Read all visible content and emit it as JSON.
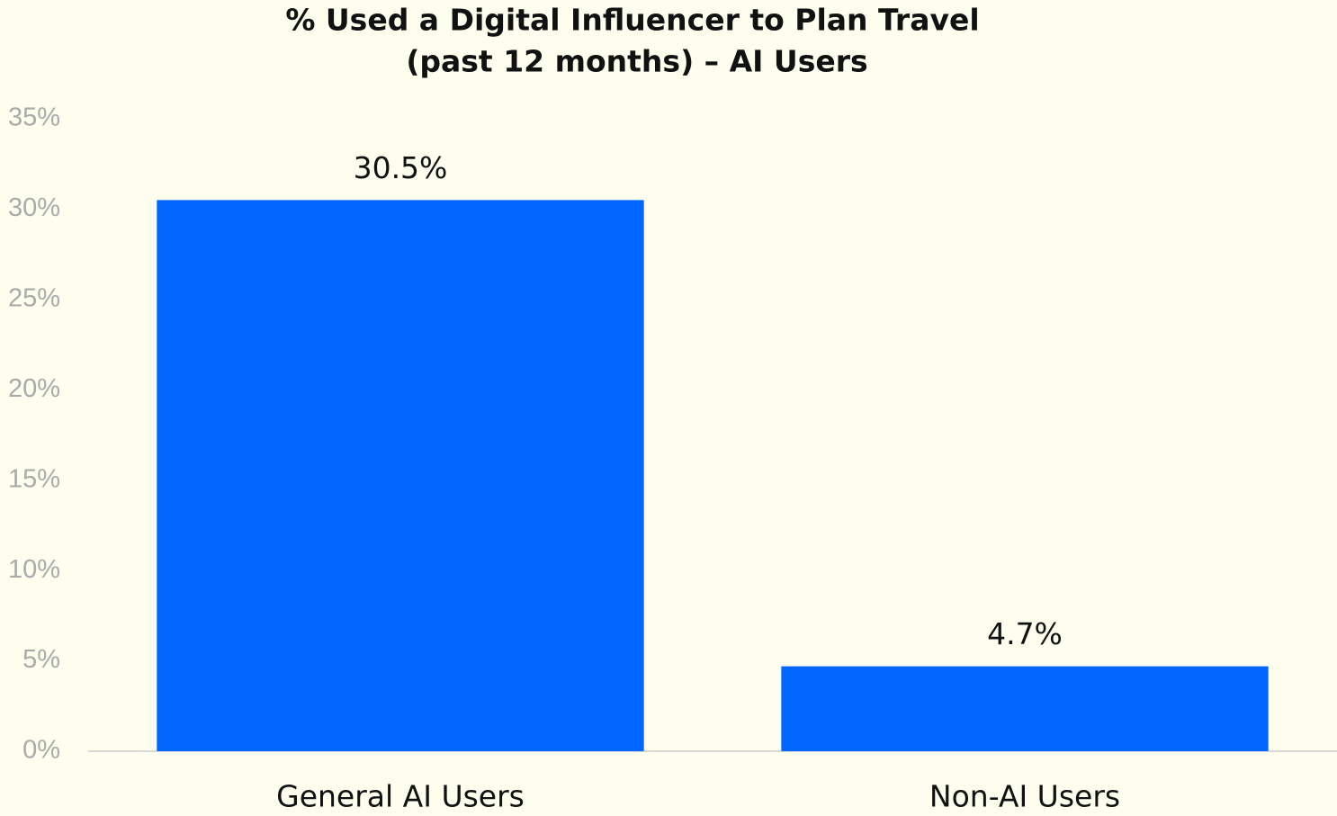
{
  "chart_data": {
    "type": "bar",
    "title": [
      "% Used a Digital Influencer to Plan Travel",
      "(past 12 months) – AI Users"
    ],
    "categories": [
      "General AI Users",
      "Non-AI Users"
    ],
    "values": [
      30.5,
      4.7
    ],
    "value_labels": [
      "30.5%",
      "4.7%"
    ],
    "color": "#0066ff",
    "ylim": [
      0,
      35
    ],
    "yticks": [
      {
        "value": 0,
        "label": "0%"
      },
      {
        "value": 5,
        "label": "5%"
      },
      {
        "value": 10,
        "label": "10%"
      },
      {
        "value": 15,
        "label": "15%"
      },
      {
        "value": 20,
        "label": "20%"
      },
      {
        "value": 25,
        "label": "25%"
      },
      {
        "value": 30,
        "label": "30%"
      },
      {
        "value": 35,
        "label": "35%"
      }
    ],
    "grid": false
  }
}
